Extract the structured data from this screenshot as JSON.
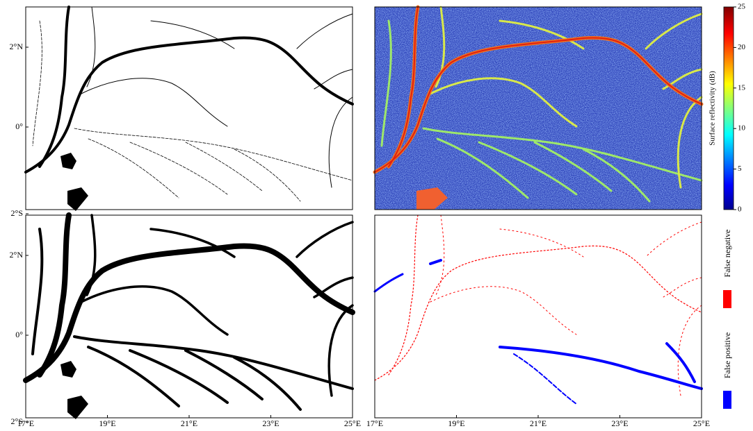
{
  "map": {
    "lon_ticks": [
      "17°E",
      "19°E",
      "21°E",
      "23°E",
      "25°E"
    ],
    "lat_ticks": [
      "2°N",
      "0°",
      "2°S"
    ],
    "colorbar": {
      "label": "Surface reflectivity (dB)",
      "ticks": [
        0,
        5,
        10,
        15,
        20,
        25
      ]
    },
    "legend": [
      "False negative",
      "False positive"
    ]
  }
}
